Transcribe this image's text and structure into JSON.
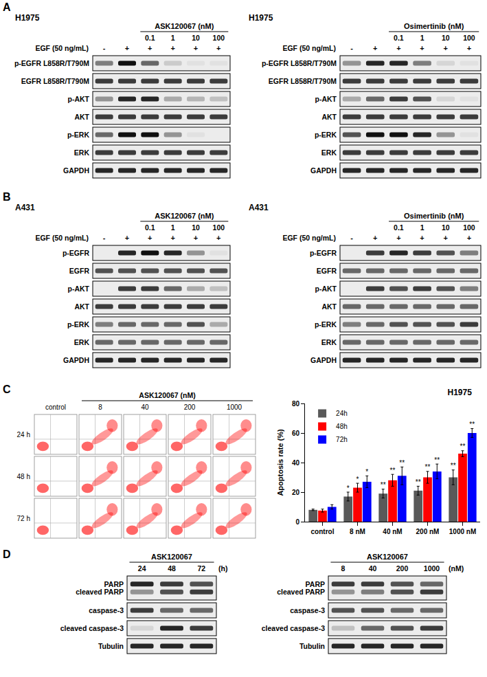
{
  "panels": [
    {
      "label": "A",
      "blots": [
        {
          "cell_line": "H1975",
          "compound": "ASK120067 (nM)",
          "treatment": "EGF (50 ng/mL)",
          "treatment_signs": [
            "-",
            "+",
            "+",
            "+",
            "+",
            "+"
          ],
          "lanes": [
            null,
            null,
            0.1,
            1,
            10,
            100
          ],
          "rows": [
            {
              "labels": [
                "p-EGFR L858R/T790M"
              ],
              "bands": [
                [
                  0.5,
                  1,
                  0.6,
                  0.15,
                  0.05,
                  0.05
                ]
              ]
            },
            {
              "labels": [
                "EGFR L858R/T790M"
              ],
              "bands": [
                [
                  0.8,
                  0.8,
                  0.8,
                  0.8,
                  0.8,
                  0.8
                ]
              ]
            },
            {
              "labels": [
                "p-AKT"
              ],
              "bands": [
                [
                  0.4,
                  0.9,
                  0.9,
                  0.3,
                  0.25,
                  0.2
                ]
              ]
            },
            {
              "labels": [
                "AKT"
              ],
              "bands": [
                [
                  0.8,
                  0.8,
                  0.8,
                  0.8,
                  0.8,
                  0.8
                ]
              ]
            },
            {
              "labels": [
                "p-ERK"
              ],
              "bands": [
                [
                  0.6,
                  1,
                  1,
                  0.4,
                  0.05,
                  0
                ]
              ]
            },
            {
              "labels": [
                "ERK"
              ],
              "bands": [
                [
                  0.8,
                  0.8,
                  0.8,
                  0.8,
                  0.8,
                  0.8
                ]
              ]
            },
            {
              "labels": [
                "GAPDH"
              ],
              "bands": [
                [
                  0.9,
                  0.9,
                  0.9,
                  0.9,
                  0.9,
                  0.9
                ]
              ]
            }
          ]
        },
        {
          "cell_line": "H1975",
          "compound": "Osimertinib (nM)",
          "treatment": "EGF (50 ng/mL)",
          "treatment_signs": [
            "-",
            "+",
            "+",
            "+",
            "+",
            "+"
          ],
          "lanes": [
            null,
            null,
            0.1,
            1,
            10,
            100
          ],
          "rows": [
            {
              "labels": [
                "p-EGFR L858R/T790M"
              ],
              "bands": [
                [
                  0.4,
                  0.9,
                  0.9,
                  0.5,
                  0.1,
                  0.05
                ]
              ]
            },
            {
              "labels": [
                "EGFR L858R/T790M"
              ],
              "bands": [
                [
                  0.8,
                  0.8,
                  0.8,
                  0.8,
                  0.8,
                  0.8
                ]
              ]
            },
            {
              "labels": [
                "p-AKT"
              ],
              "bands": [
                [
                  0.3,
                  0.6,
                  0.8,
                  0.7,
                  0.1,
                  0.05
                ]
              ]
            },
            {
              "labels": [
                "AKT"
              ],
              "bands": [
                [
                  0.8,
                  0.8,
                  0.8,
                  0.8,
                  0.8,
                  0.8
                ]
              ]
            },
            {
              "labels": [
                "p-ERK"
              ],
              "bands": [
                [
                  0.7,
                  1,
                  1,
                  0.9,
                  0.4,
                  0.05
                ]
              ]
            },
            {
              "labels": [
                "ERK"
              ],
              "bands": [
                [
                  0.8,
                  0.8,
                  0.8,
                  0.8,
                  0.8,
                  0.8
                ]
              ]
            },
            {
              "labels": [
                "GAPDH"
              ],
              "bands": [
                [
                  0.9,
                  0.9,
                  0.9,
                  0.9,
                  0.9,
                  0.9
                ]
              ]
            }
          ]
        }
      ]
    },
    {
      "label": "B",
      "blots": [
        {
          "cell_line": "A431",
          "compound": "ASK120067 (nM)",
          "treatment": "EGF (50 ng/mL)",
          "treatment_signs": [
            "-",
            "+",
            "+",
            "+",
            "+",
            "+"
          ],
          "lanes": [
            null,
            null,
            0.1,
            1,
            10,
            100
          ],
          "rows": [
            {
              "labels": [
                "p-EGFR"
              ],
              "bands": [
                [
                  0,
                  0.9,
                  1,
                  0.9,
                  0.4,
                  0.05
                ]
              ]
            },
            {
              "labels": [
                "EGFR"
              ],
              "bands": [
                [
                  0.7,
                  0.7,
                  0.7,
                  0.7,
                  0.7,
                  0.7
                ]
              ]
            },
            {
              "labels": [
                "p-AKT"
              ],
              "bands": [
                [
                  0,
                  0.8,
                  0.8,
                  0.6,
                  0.3,
                  0.2
                ]
              ]
            },
            {
              "labels": [
                "AKT"
              ],
              "bands": [
                [
                  0.8,
                  0.8,
                  0.8,
                  0.8,
                  0.8,
                  0.8
                ]
              ]
            },
            {
              "labels": [
                "p-ERK"
              ],
              "bands": [
                [
                  0.5,
                  0.6,
                  0.6,
                  0.6,
                  0.7,
                  0.3
                ]
              ]
            },
            {
              "labels": [
                "ERK"
              ],
              "bands": [
                [
                  0.6,
                  0.6,
                  0.6,
                  0.6,
                  0.6,
                  0.6
                ]
              ]
            },
            {
              "labels": [
                "GAPDH"
              ],
              "bands": [
                [
                  0.9,
                  0.9,
                  0.9,
                  0.9,
                  0.9,
                  0.9
                ]
              ]
            }
          ]
        },
        {
          "cell_line": "A431",
          "compound": "Osimertinib (nM)",
          "treatment": "EGF (50 ng/mL)",
          "treatment_signs": [
            "-",
            "+",
            "+",
            "+",
            "+",
            "+"
          ],
          "lanes": [
            null,
            null,
            0.1,
            1,
            10,
            100
          ],
          "rows": [
            {
              "labels": [
                "p-EGFR"
              ],
              "bands": [
                [
                  0,
                  0.8,
                  0.9,
                  0.8,
                  0.7,
                  0.5
                ]
              ]
            },
            {
              "labels": [
                "EGFR"
              ],
              "bands": [
                [
                  0.6,
                  0.6,
                  0.6,
                  0.6,
                  0.6,
                  0.6
                ]
              ]
            },
            {
              "labels": [
                "p-AKT"
              ],
              "bands": [
                [
                  0,
                  0.8,
                  0.7,
                  0.8,
                  0.7,
                  0.5
                ]
              ]
            },
            {
              "labels": [
                "AKT"
              ],
              "bands": [
                [
                  0.6,
                  0.6,
                  0.6,
                  0.6,
                  0.6,
                  0.6
                ]
              ]
            },
            {
              "labels": [
                "p-ERK"
              ],
              "bands": [
                [
                  0.5,
                  0.6,
                  0.7,
                  0.7,
                  0.7,
                  0.8
                ]
              ]
            },
            {
              "labels": [
                "ERK"
              ],
              "bands": [
                [
                  0.6,
                  0.6,
                  0.6,
                  0.6,
                  0.6,
                  0.6
                ]
              ]
            },
            {
              "labels": [
                "GAPDH"
              ],
              "bands": [
                [
                  0.9,
                  0.9,
                  0.9,
                  0.9,
                  0.9,
                  0.9
                ]
              ]
            }
          ]
        }
      ]
    },
    {
      "label": "C",
      "flow": {
        "compound": "ASK120067 (nM)",
        "columns": [
          "control",
          8,
          40,
          200,
          1000
        ],
        "rows": [
          "24 h",
          "48 h",
          "72 h"
        ]
      }
    },
    {
      "label": "D",
      "blots": [
        {
          "compound": "ASK120067",
          "lanes": [
            24,
            48,
            72
          ],
          "unit": "(h)",
          "rows": [
            {
              "labels": [
                "PARP",
                "cleaved PARP"
              ],
              "bands": [
                [
                  0.9,
                  0.8,
                  0.7
                ],
                [
                  0.4,
                  0.7,
                  0.8
                ]
              ]
            },
            {
              "labels": [
                "caspase-3"
              ],
              "bands": [
                [
                  0.8,
                  0.6,
                  0.6
                ]
              ]
            },
            {
              "labels": [
                "cleaved caspase-3"
              ],
              "bands": [
                [
                  0.1,
                  0.9,
                  0.8
                ]
              ]
            },
            {
              "labels": [
                "Tubulin"
              ],
              "bands": [
                [
                  0.9,
                  0.9,
                  0.9
                ]
              ]
            }
          ]
        },
        {
          "compound": "ASK120067",
          "lanes": [
            8,
            40,
            200,
            1000
          ],
          "unit": "(nM)",
          "rows": [
            {
              "labels": [
                "PARP",
                "cleaved PARP"
              ],
              "bands": [
                [
                  0.8,
                  0.8,
                  0.7,
                  0.6
                ],
                [
                  0.4,
                  0.5,
                  0.7,
                  0.8
                ]
              ]
            },
            {
              "labels": [
                "caspase-3"
              ],
              "bands": [
                [
                  0.7,
                  0.7,
                  0.6,
                  0.6
                ]
              ]
            },
            {
              "labels": [
                "cleaved caspase-3"
              ],
              "bands": [
                [
                  0.2,
                  0.6,
                  0.7,
                  0.8
                ]
              ]
            },
            {
              "labels": [
                "Tubulin"
              ],
              "bands": [
                [
                  0.9,
                  0.9,
                  0.9,
                  0.9
                ]
              ]
            }
          ]
        }
      ]
    }
  ],
  "chart_data": {
    "type": "bar",
    "title": "H1975",
    "y_label": "Apoptosis rate (%)",
    "categories": [
      "control",
      "8 nM",
      "40 nM",
      "200 nM",
      "1000 nM"
    ],
    "ylim": [
      0,
      80
    ],
    "yticks": [
      0,
      20,
      40,
      60,
      80
    ],
    "grid": false,
    "legend": "top left",
    "series": [
      {
        "name": "24h",
        "color": "#595959",
        "values": [
          8,
          17,
          19,
          21,
          30
        ],
        "error": [
          0.5,
          3,
          3,
          3,
          5
        ],
        "significance": [
          null,
          "*",
          "**",
          "**",
          "**"
        ]
      },
      {
        "name": "48h",
        "color": "#ff0000",
        "values": [
          7.5,
          23,
          28,
          30,
          46
        ],
        "error": [
          1,
          3,
          4,
          4,
          2
        ],
        "significance": [
          null,
          "*",
          "**",
          "**",
          "**"
        ]
      },
      {
        "name": "72h",
        "color": "#0000ff",
        "values": [
          10,
          27,
          31,
          34,
          60
        ],
        "error": [
          1.5,
          4,
          6,
          5,
          3
        ],
        "significance": [
          null,
          "*",
          "**",
          "**",
          "**"
        ]
      }
    ]
  }
}
